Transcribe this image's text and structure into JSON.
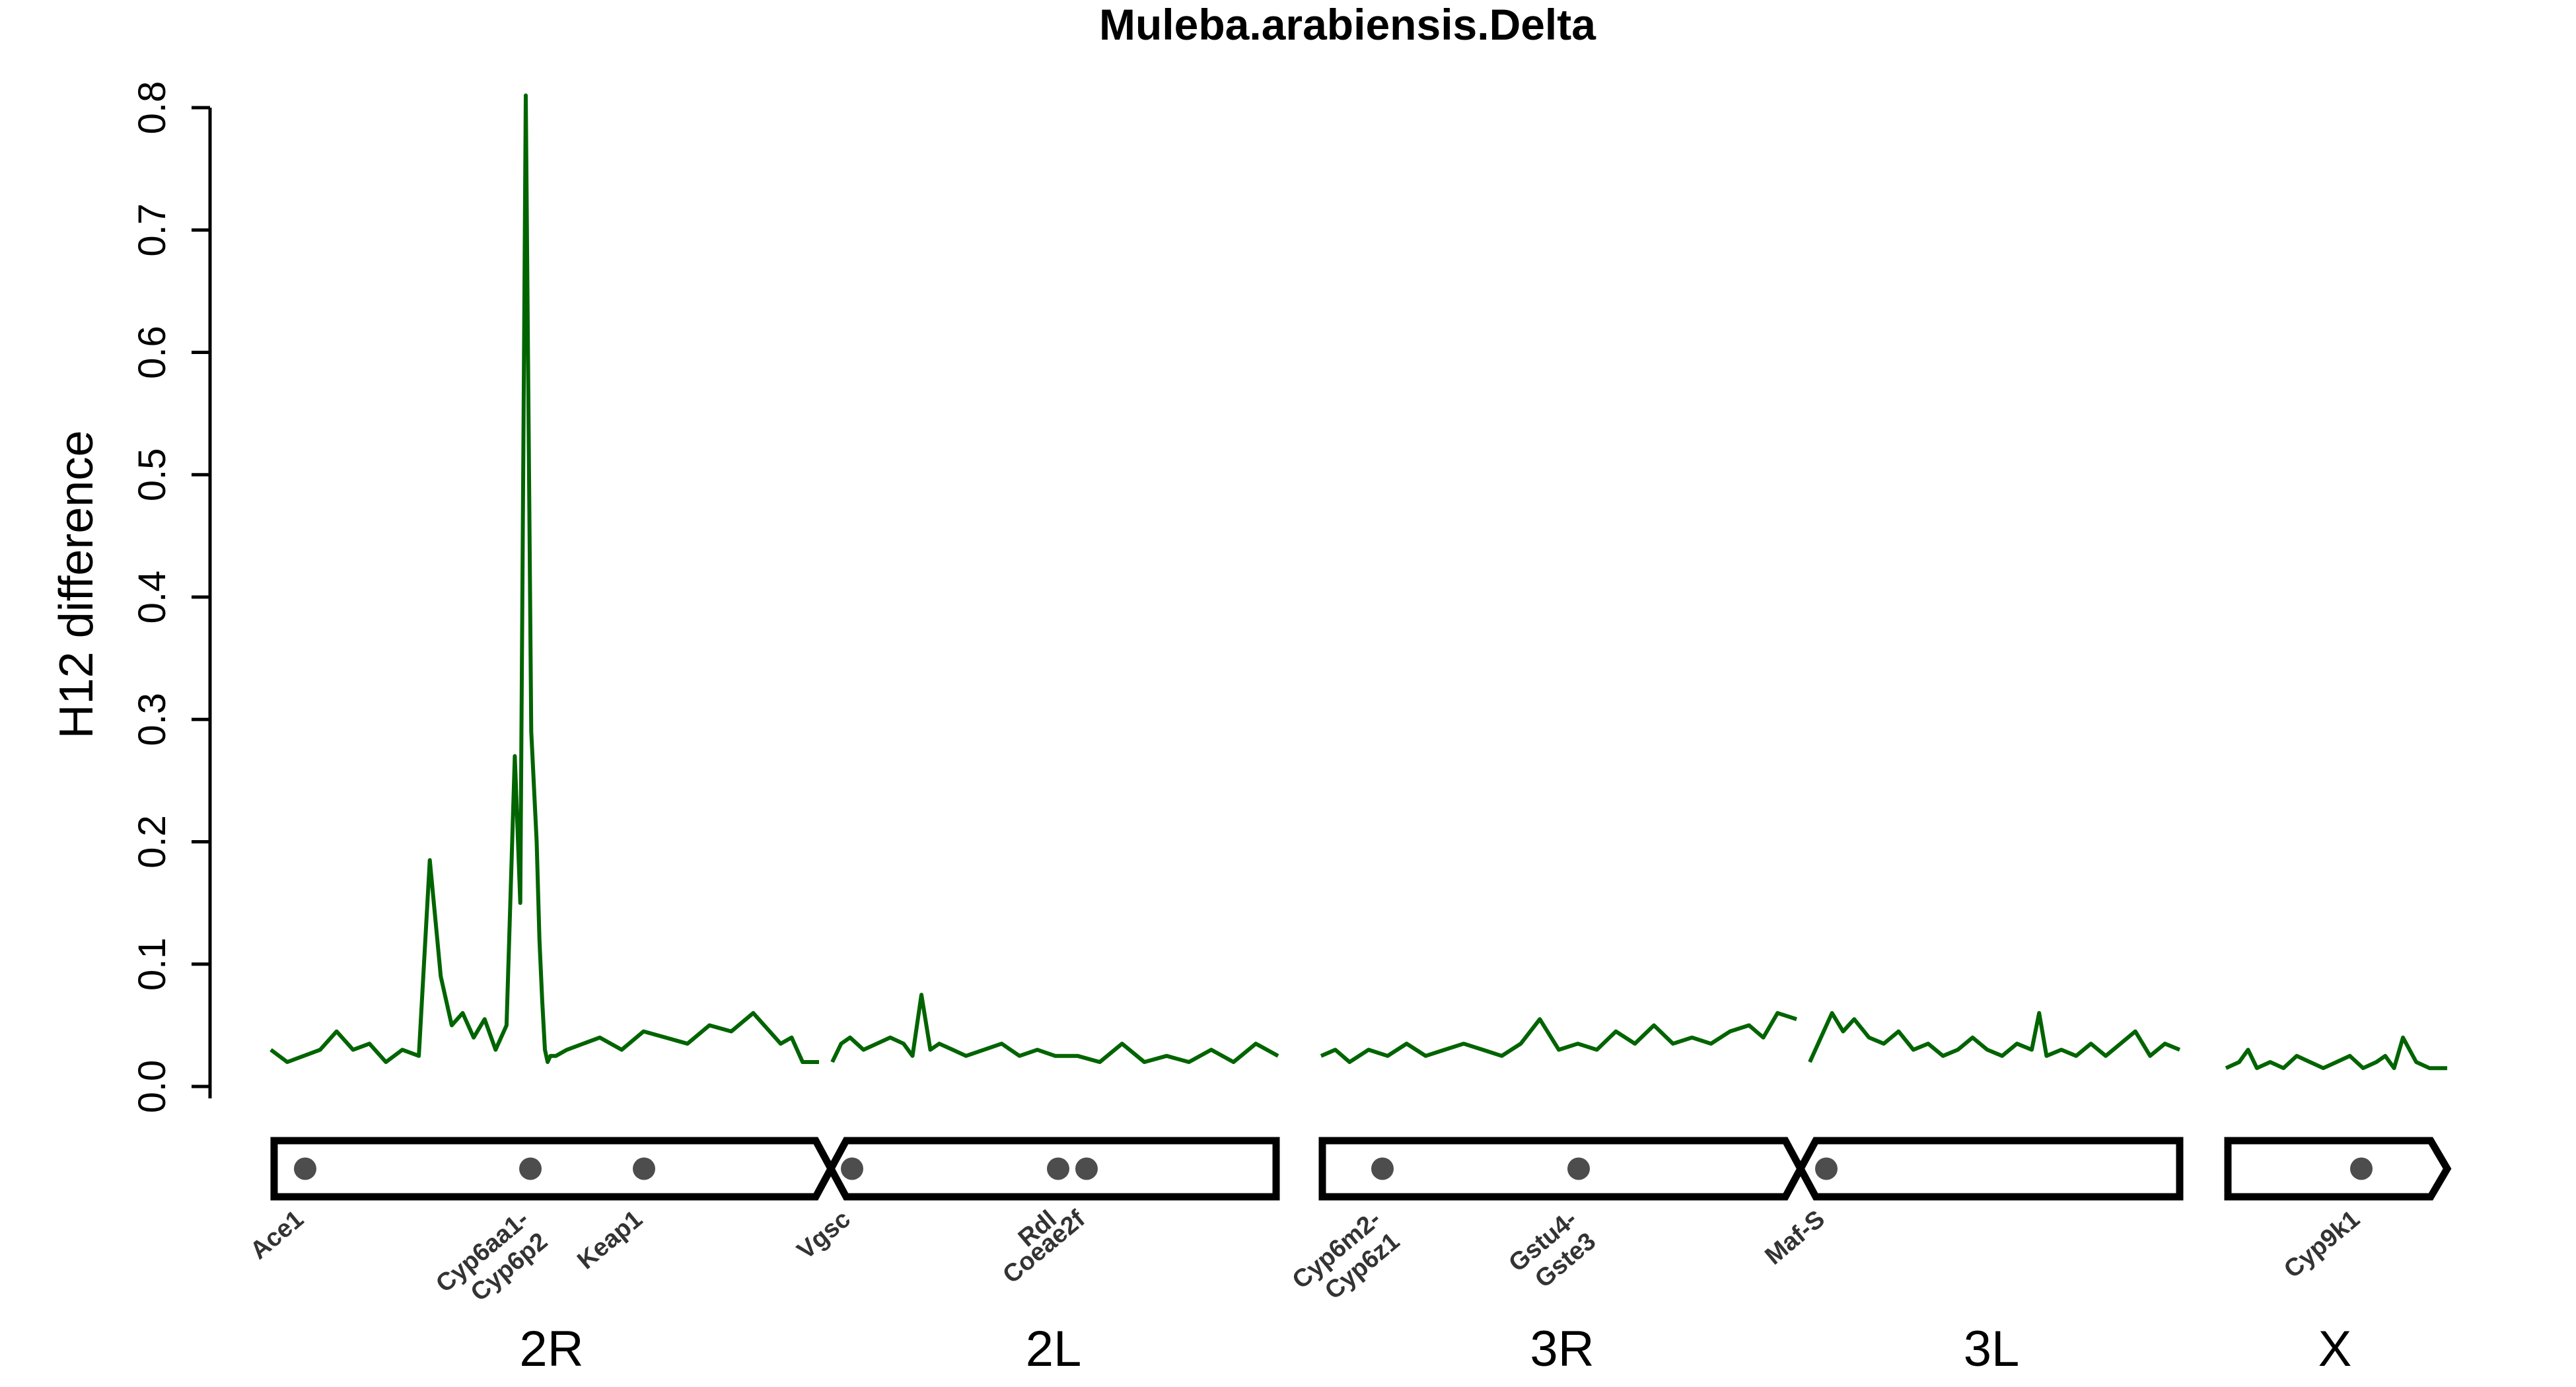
{
  "chart_data": {
    "type": "line",
    "title": "Muleba.arabiensis.Delta",
    "xlabel": "",
    "ylabel": "H12 difference",
    "ylim": [
      0,
      0.8
    ],
    "yticks": [
      "0.0",
      "0.1",
      "0.2",
      "0.3",
      "0.4",
      "0.5",
      "0.6",
      "0.7",
      "0.8"
    ],
    "line_color": "#006400",
    "grid": false,
    "legend": "none",
    "chromosomes": [
      {
        "name": "2R",
        "label": "2R"
      },
      {
        "name": "2L",
        "label": "2L"
      },
      {
        "name": "3R",
        "label": "3R"
      },
      {
        "name": "3L",
        "label": "3L"
      },
      {
        "name": "X",
        "label": "X"
      }
    ],
    "genes": [
      {
        "id": "ace1",
        "lines": [
          "Ace1"
        ]
      },
      {
        "id": "cyp6aa1",
        "lines": [
          "Cyp6aa1-",
          "Cyp6p2"
        ]
      },
      {
        "id": "keap1",
        "lines": [
          "Keap1"
        ]
      },
      {
        "id": "vgsc",
        "lines": [
          "Vgsc"
        ]
      },
      {
        "id": "rdl",
        "lines": [
          "Rdl"
        ]
      },
      {
        "id": "coeae2f",
        "lines": [
          "Coeae2f"
        ]
      },
      {
        "id": "cyp6m2",
        "lines": [
          "Cyp6m2-",
          "Cyp6z1"
        ]
      },
      {
        "id": "gstu4",
        "lines": [
          "Gstu4-",
          "Gste3"
        ]
      },
      {
        "id": "mafs",
        "lines": [
          "Maf-S"
        ]
      },
      {
        "id": "cyp9k1",
        "lines": [
          "Cyp9k1"
        ]
      }
    ],
    "series": [
      {
        "chromosome": "2R",
        "x": [
          0,
          0.03,
          0.06,
          0.09,
          0.12,
          0.15,
          0.18,
          0.21,
          0.24,
          0.27,
          0.29,
          0.31,
          0.33,
          0.35,
          0.37,
          0.39,
          0.41,
          0.43,
          0.445,
          0.455,
          0.465,
          0.475,
          0.485,
          0.49,
          0.495,
          0.5,
          0.505,
          0.51,
          0.52,
          0.54,
          0.57,
          0.6,
          0.64,
          0.68,
          0.72,
          0.76,
          0.8,
          0.84,
          0.88,
          0.91,
          0.93,
          0.95,
          0.97,
          1.0
        ],
        "y": [
          0.03,
          0.02,
          0.025,
          0.03,
          0.045,
          0.03,
          0.035,
          0.02,
          0.03,
          0.025,
          0.185,
          0.09,
          0.05,
          0.06,
          0.04,
          0.055,
          0.03,
          0.05,
          0.27,
          0.15,
          0.81,
          0.29,
          0.2,
          0.12,
          0.07,
          0.03,
          0.02,
          0.025,
          0.025,
          0.03,
          0.035,
          0.04,
          0.03,
          0.045,
          0.04,
          0.035,
          0.05,
          0.045,
          0.06,
          0.045,
          0.035,
          0.04,
          0.02,
          0.02
        ]
      },
      {
        "chromosome": "2L",
        "x": [
          0,
          0.02,
          0.04,
          0.07,
          0.1,
          0.13,
          0.16,
          0.18,
          0.2,
          0.22,
          0.24,
          0.27,
          0.3,
          0.34,
          0.38,
          0.42,
          0.46,
          0.5,
          0.55,
          0.6,
          0.65,
          0.7,
          0.75,
          0.8,
          0.85,
          0.9,
          0.95,
          1.0
        ],
        "y": [
          0.02,
          0.035,
          0.04,
          0.03,
          0.035,
          0.04,
          0.035,
          0.025,
          0.075,
          0.03,
          0.035,
          0.03,
          0.025,
          0.03,
          0.035,
          0.025,
          0.03,
          0.025,
          0.025,
          0.02,
          0.035,
          0.02,
          0.025,
          0.02,
          0.03,
          0.02,
          0.035,
          0.025
        ]
      },
      {
        "chromosome": "3R",
        "x": [
          0,
          0.03,
          0.06,
          0.1,
          0.14,
          0.18,
          0.22,
          0.26,
          0.3,
          0.34,
          0.38,
          0.42,
          0.46,
          0.5,
          0.54,
          0.58,
          0.62,
          0.66,
          0.7,
          0.74,
          0.78,
          0.82,
          0.86,
          0.9,
          0.93,
          0.96,
          1.0
        ],
        "y": [
          0.025,
          0.03,
          0.02,
          0.03,
          0.025,
          0.035,
          0.025,
          0.03,
          0.035,
          0.03,
          0.025,
          0.035,
          0.055,
          0.03,
          0.035,
          0.03,
          0.045,
          0.035,
          0.05,
          0.035,
          0.04,
          0.035,
          0.045,
          0.05,
          0.04,
          0.06,
          0.055
        ]
      },
      {
        "chromosome": "3L",
        "x": [
          0,
          0.03,
          0.06,
          0.09,
          0.12,
          0.16,
          0.2,
          0.24,
          0.28,
          0.32,
          0.36,
          0.4,
          0.44,
          0.48,
          0.52,
          0.56,
          0.6,
          0.62,
          0.64,
          0.68,
          0.72,
          0.76,
          0.8,
          0.84,
          0.88,
          0.92,
          0.96,
          1.0
        ],
        "y": [
          0.02,
          0.04,
          0.06,
          0.045,
          0.055,
          0.04,
          0.035,
          0.045,
          0.03,
          0.035,
          0.025,
          0.03,
          0.04,
          0.03,
          0.025,
          0.035,
          0.03,
          0.06,
          0.025,
          0.03,
          0.025,
          0.035,
          0.025,
          0.035,
          0.045,
          0.025,
          0.035,
          0.03
        ]
      },
      {
        "chromosome": "X",
        "x": [
          0,
          0.06,
          0.1,
          0.14,
          0.2,
          0.26,
          0.32,
          0.38,
          0.44,
          0.5,
          0.56,
          0.62,
          0.68,
          0.72,
          0.76,
          0.8,
          0.86,
          0.92,
          1.0
        ],
        "y": [
          0.015,
          0.02,
          0.03,
          0.015,
          0.02,
          0.015,
          0.025,
          0.02,
          0.015,
          0.02,
          0.025,
          0.015,
          0.02,
          0.025,
          0.015,
          0.04,
          0.02,
          0.015,
          0.015
        ]
      }
    ]
  }
}
